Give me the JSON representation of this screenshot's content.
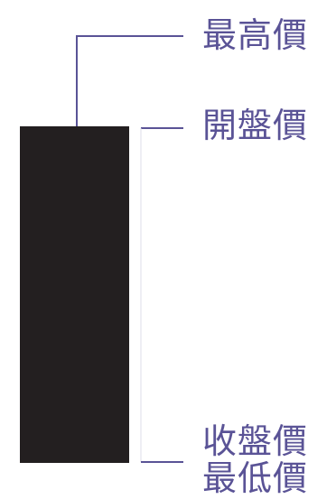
{
  "colors": {
    "candle_body": "#231f20",
    "line": "#5a5396",
    "label_text": "#5a5396",
    "background": "#ffffff"
  },
  "labels": {
    "high": "最高價",
    "open": "開盤價",
    "close": "收盤價",
    "low": "最低價"
  }
}
